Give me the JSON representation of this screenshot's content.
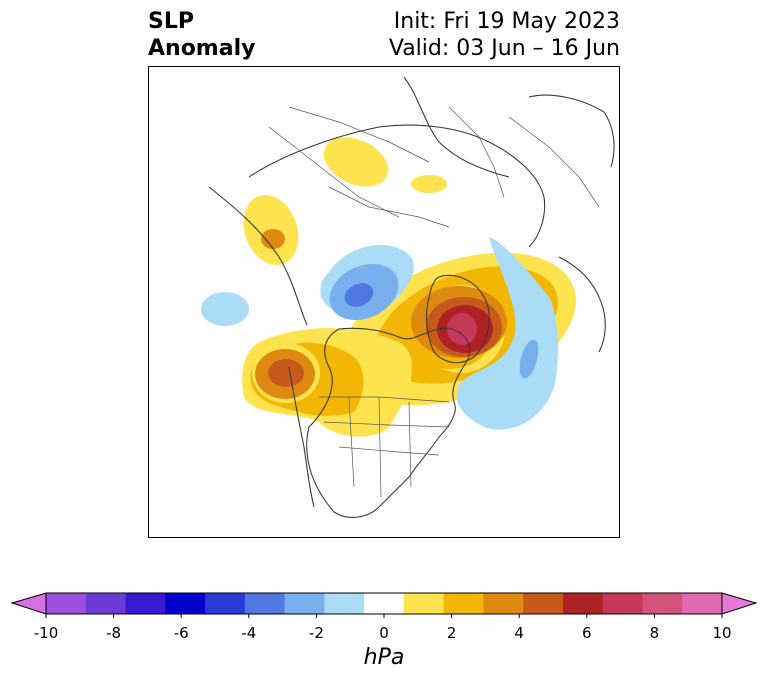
{
  "title": {
    "line1": "SLP",
    "line2": "Anomaly"
  },
  "subtitle": {
    "init": "Init: Fri 19 May 2023",
    "valid": "Valid: 03 Jun – 16 Jun"
  },
  "colorbar": {
    "units": "hPa",
    "tick_labels": [
      "-10",
      "-8",
      "-6",
      "-4",
      "-2",
      "0",
      "2",
      "4",
      "6",
      "8",
      "10"
    ],
    "bin_colors": [
      "#9d50dc",
      "#6a3bd6",
      "#3a19d2",
      "#0000cd",
      "#2a3cd8",
      "#4f78e3",
      "#78b0ef",
      "#aadcf8",
      "#ffffff",
      "#fde34e",
      "#f2b705",
      "#de8a10",
      "#c65a1a",
      "#b02126",
      "#c43957",
      "#d4537a",
      "#e069b0"
    ],
    "extend_low_color": "#d66fe6",
    "extend_high_color": "#e877d8"
  },
  "map_features": [
    "coastlines",
    "country-borders",
    "us-state-borders",
    "slp-anomaly-contours"
  ]
}
